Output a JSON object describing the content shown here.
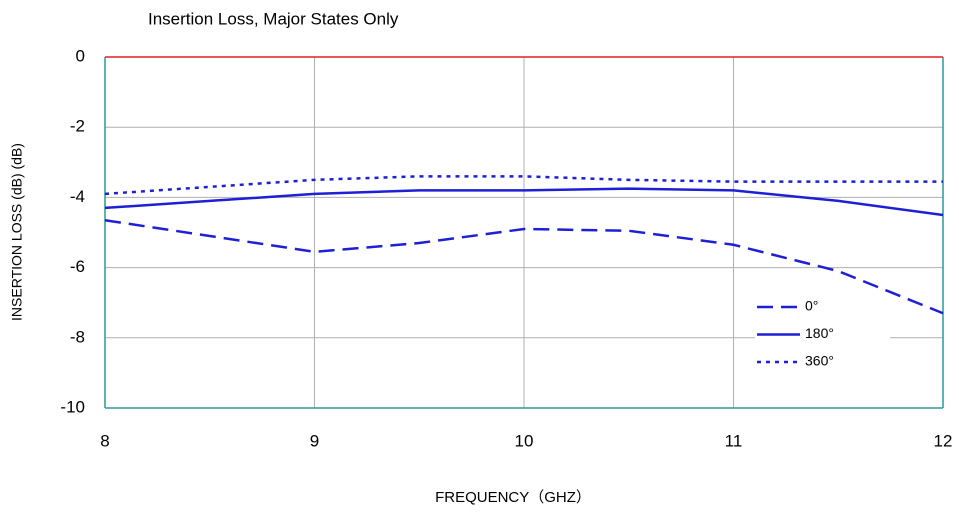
{
  "chart_data": {
    "type": "line",
    "title": "Insertion Loss, Major States Only",
    "x_label": "FREQUENCY（GHZ）",
    "y_label": "INSERTION LOSS (dB) (dB)",
    "x": [
      8,
      8.5,
      9,
      9.5,
      10,
      10.5,
      11,
      11.5,
      12
    ],
    "series": [
      {
        "name": "0°",
        "color": "#1f1fd6",
        "style": "dashed",
        "values": [
          -4.65,
          -5.1,
          -5.55,
          -5.3,
          -4.9,
          -4.95,
          -5.35,
          -6.1,
          -7.3
        ]
      },
      {
        "name": "180°",
        "color": "#1f1fd6",
        "style": "solid",
        "values": [
          -4.3,
          -4.1,
          -3.9,
          -3.8,
          -3.8,
          -3.75,
          -3.8,
          -4.1,
          -4.5
        ]
      },
      {
        "name": "360°",
        "color": "#1f1fd6",
        "style": "dotted",
        "values": [
          -3.9,
          -3.7,
          -3.5,
          -3.4,
          -3.4,
          -3.5,
          -3.55,
          -3.55,
          -3.55
        ]
      }
    ],
    "xlim": [
      8,
      12
    ],
    "xticks": [
      8,
      9,
      10,
      11,
      12
    ],
    "ylim": [
      -10,
      0
    ],
    "yticks": [
      -10,
      -8,
      -6,
      -4,
      -2,
      0
    ],
    "grid": true,
    "legend": "lower right"
  }
}
